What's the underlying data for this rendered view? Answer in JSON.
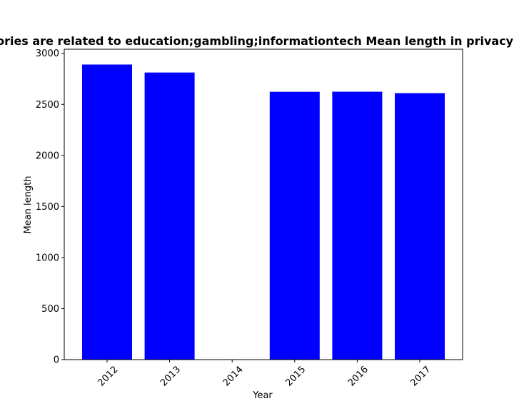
{
  "chart_data": {
    "type": "bar",
    "title": "Categories are related to education;gambling;informationtech Mean length in privacy policies",
    "xlabel": "Year",
    "ylabel": "Mean length",
    "categories": [
      "2012",
      "2013",
      "2014",
      "2015",
      "2016",
      "2017"
    ],
    "values": [
      2890,
      2812,
      0,
      2623,
      2624,
      2610
    ],
    "ylim": [
      0,
      3040
    ],
    "yticks": [
      0,
      500,
      1000,
      1500,
      2000,
      2500,
      3000
    ],
    "bar_color": "#0000ff",
    "grid": false,
    "legend": "none"
  }
}
